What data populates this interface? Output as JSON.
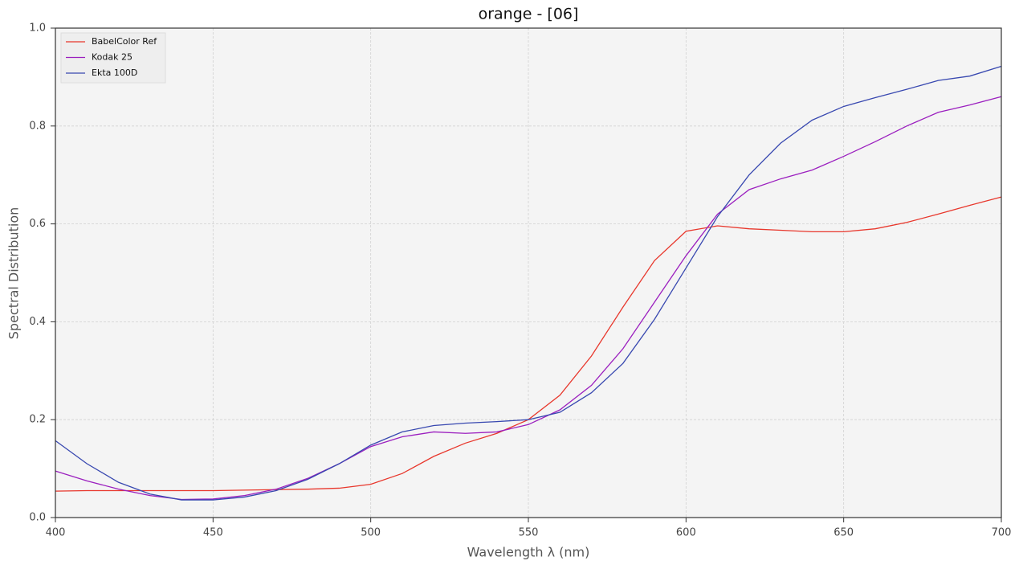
{
  "chart_data": {
    "type": "line",
    "title": "orange - [06]",
    "x_label": "Wavelength λ (nm)",
    "y_label": "Spectral Distribution",
    "x": [
      400,
      410,
      420,
      430,
      440,
      450,
      460,
      470,
      480,
      490,
      500,
      510,
      520,
      530,
      540,
      550,
      560,
      570,
      580,
      590,
      600,
      610,
      620,
      630,
      640,
      650,
      660,
      670,
      680,
      690,
      700
    ],
    "series": [
      {
        "name": "BabelColor Ref",
        "color": "#e8372c",
        "values": [
          0.054,
          0.055,
          0.055,
          0.055,
          0.055,
          0.055,
          0.056,
          0.057,
          0.058,
          0.06,
          0.068,
          0.09,
          0.125,
          0.152,
          0.172,
          0.2,
          0.25,
          0.33,
          0.43,
          0.525,
          0.585,
          0.596,
          0.59,
          0.587,
          0.584,
          0.584,
          0.59,
          0.603,
          0.62,
          0.638,
          0.655
        ]
      },
      {
        "name": "Kodak 25",
        "color": "#9b1fbf",
        "values": [
          0.095,
          0.075,
          0.058,
          0.045,
          0.037,
          0.038,
          0.045,
          0.058,
          0.08,
          0.11,
          0.145,
          0.165,
          0.175,
          0.172,
          0.175,
          0.19,
          0.22,
          0.27,
          0.345,
          0.44,
          0.535,
          0.62,
          0.67,
          0.692,
          0.71,
          0.738,
          0.768,
          0.8,
          0.828,
          0.843,
          0.86
        ]
      },
      {
        "name": "Ekta 100D",
        "color": "#3848b0",
        "values": [
          0.157,
          0.11,
          0.072,
          0.048,
          0.036,
          0.036,
          0.042,
          0.055,
          0.078,
          0.11,
          0.148,
          0.175,
          0.188,
          0.193,
          0.196,
          0.2,
          0.215,
          0.255,
          0.315,
          0.405,
          0.51,
          0.615,
          0.7,
          0.765,
          0.812,
          0.84,
          0.858,
          0.875,
          0.893,
          0.902,
          0.922
        ]
      }
    ],
    "xlim": [
      400,
      700
    ],
    "ylim": [
      0,
      1
    ],
    "xticks": [
      400,
      450,
      500,
      550,
      600,
      650,
      700
    ],
    "yticks": [
      {
        "value": 0,
        "label": "0.0"
      },
      {
        "value": 0.2,
        "label": "0.2"
      },
      {
        "value": 0.4,
        "label": "0.4"
      },
      {
        "value": 0.6,
        "label": "0.6"
      },
      {
        "value": 0.8,
        "label": "0.8"
      },
      {
        "value": 1,
        "label": "1.0"
      }
    ],
    "grid": true,
    "legend": "upper left"
  }
}
